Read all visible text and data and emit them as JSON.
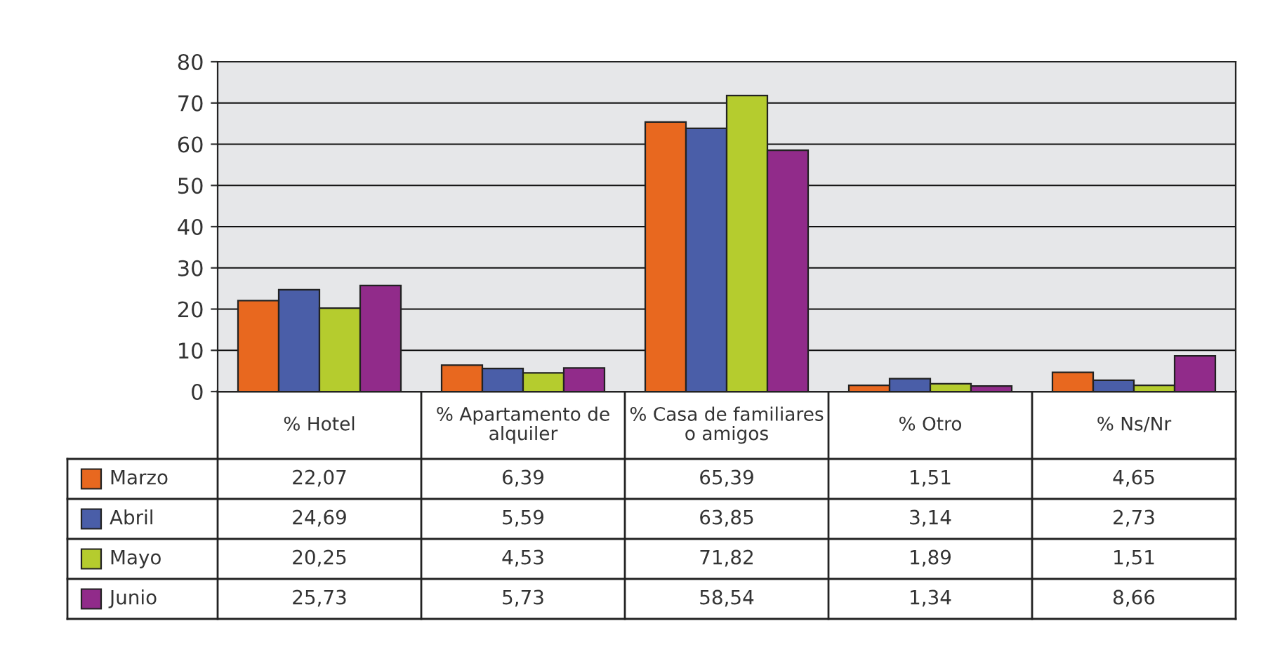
{
  "chart_data": {
    "type": "bar",
    "categories": [
      "% Hotel",
      "% Apartamento de alquiler",
      "% Casa de familiares o amigos",
      "% Otro",
      "% Ns/Nr"
    ],
    "series": [
      {
        "name": "Marzo",
        "color": "#e8681f",
        "values": [
          22.07,
          6.39,
          65.39,
          1.51,
          4.65
        ],
        "value_labels": [
          "22,07",
          "6,39",
          "65,39",
          "1,51",
          "4,65"
        ]
      },
      {
        "name": "Abril",
        "color": "#4a5ea8",
        "values": [
          24.69,
          5.59,
          63.85,
          3.14,
          2.73
        ],
        "value_labels": [
          "24,69",
          "5,59",
          "63,85",
          "3,14",
          "2,73"
        ]
      },
      {
        "name": "Mayo",
        "color": "#b5cc2e",
        "values": [
          20.25,
          4.53,
          71.82,
          1.89,
          1.51
        ],
        "value_labels": [
          "20,25",
          "4,53",
          "71,82",
          "1,89",
          "1,51"
        ]
      },
      {
        "name": "Junio",
        "color": "#912b8a",
        "values": [
          25.73,
          5.73,
          58.54,
          1.34,
          8.66
        ],
        "value_labels": [
          "25,73",
          "5,73",
          "58,54",
          "1,34",
          "8,66"
        ]
      }
    ],
    "ylim": [
      0,
      80
    ],
    "yticks": [
      0,
      10,
      20,
      30,
      40,
      50,
      60,
      70,
      80
    ],
    "grid": "y",
    "legend": "bottom left"
  }
}
